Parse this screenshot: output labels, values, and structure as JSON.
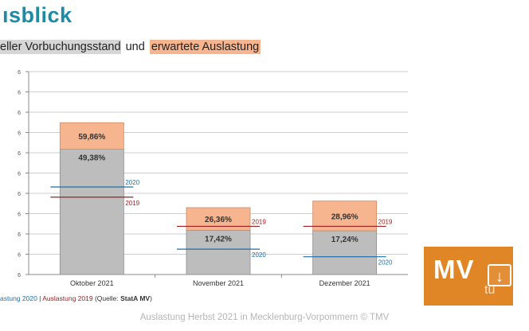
{
  "title": "ısblick",
  "subtitle": {
    "part_a": "eller Vorbuchungsstand",
    "part_b": "und",
    "part_c": "erwartete Auslastung"
  },
  "colors": {
    "title": "#1d8aa6",
    "booking_bar": "#bdbdbd",
    "expected_bar": "#f6b48f",
    "line_2020": "#1d6fa8",
    "line_2019": "#a02020",
    "logo": "#e08626"
  },
  "chart_data": {
    "type": "bar",
    "stacked": true,
    "categories": [
      "Oktober 2021",
      "November 2021",
      "Dezember 2021"
    ],
    "ylim": [
      0,
      0.8
    ],
    "y_tick_labels": [
      "6",
      "6",
      "6",
      "6",
      "6",
      "6",
      "6",
      "6",
      "6",
      "6",
      "6"
    ],
    "grid": true,
    "series": [
      {
        "values": [
          49.38,
          17.42,
          17.24
        ],
        "labels": [
          "49,38%",
          "17,42%",
          "17,24%"
        ]
      },
      {
        "totals": [
          59.86,
          26.36,
          28.96
        ],
        "labels": [
          "59,86%",
          "26,36%",
          "28,96%"
        ]
      }
    ],
    "reference_lines": [
      {
        "name": "2020",
        "values": [
          34.5,
          10.0,
          7.0
        ]
      },
      {
        "name": "2019",
        "values": [
          30.5,
          19.0,
          19.0
        ]
      }
    ]
  },
  "source_line": {
    "part_2020": "astung 2020",
    "sep": " | ",
    "part_2019": "Auslastung 2019",
    "paren_open": " (Quelle: ",
    "source": "StatA MV",
    "paren_close": ")"
  },
  "caption": "Auslastung Herbst 2021 in Mecklenburg-Vorpommern © TMV",
  "logo": {
    "text": "MV",
    "sub": "tu",
    "icon": "download-icon"
  }
}
